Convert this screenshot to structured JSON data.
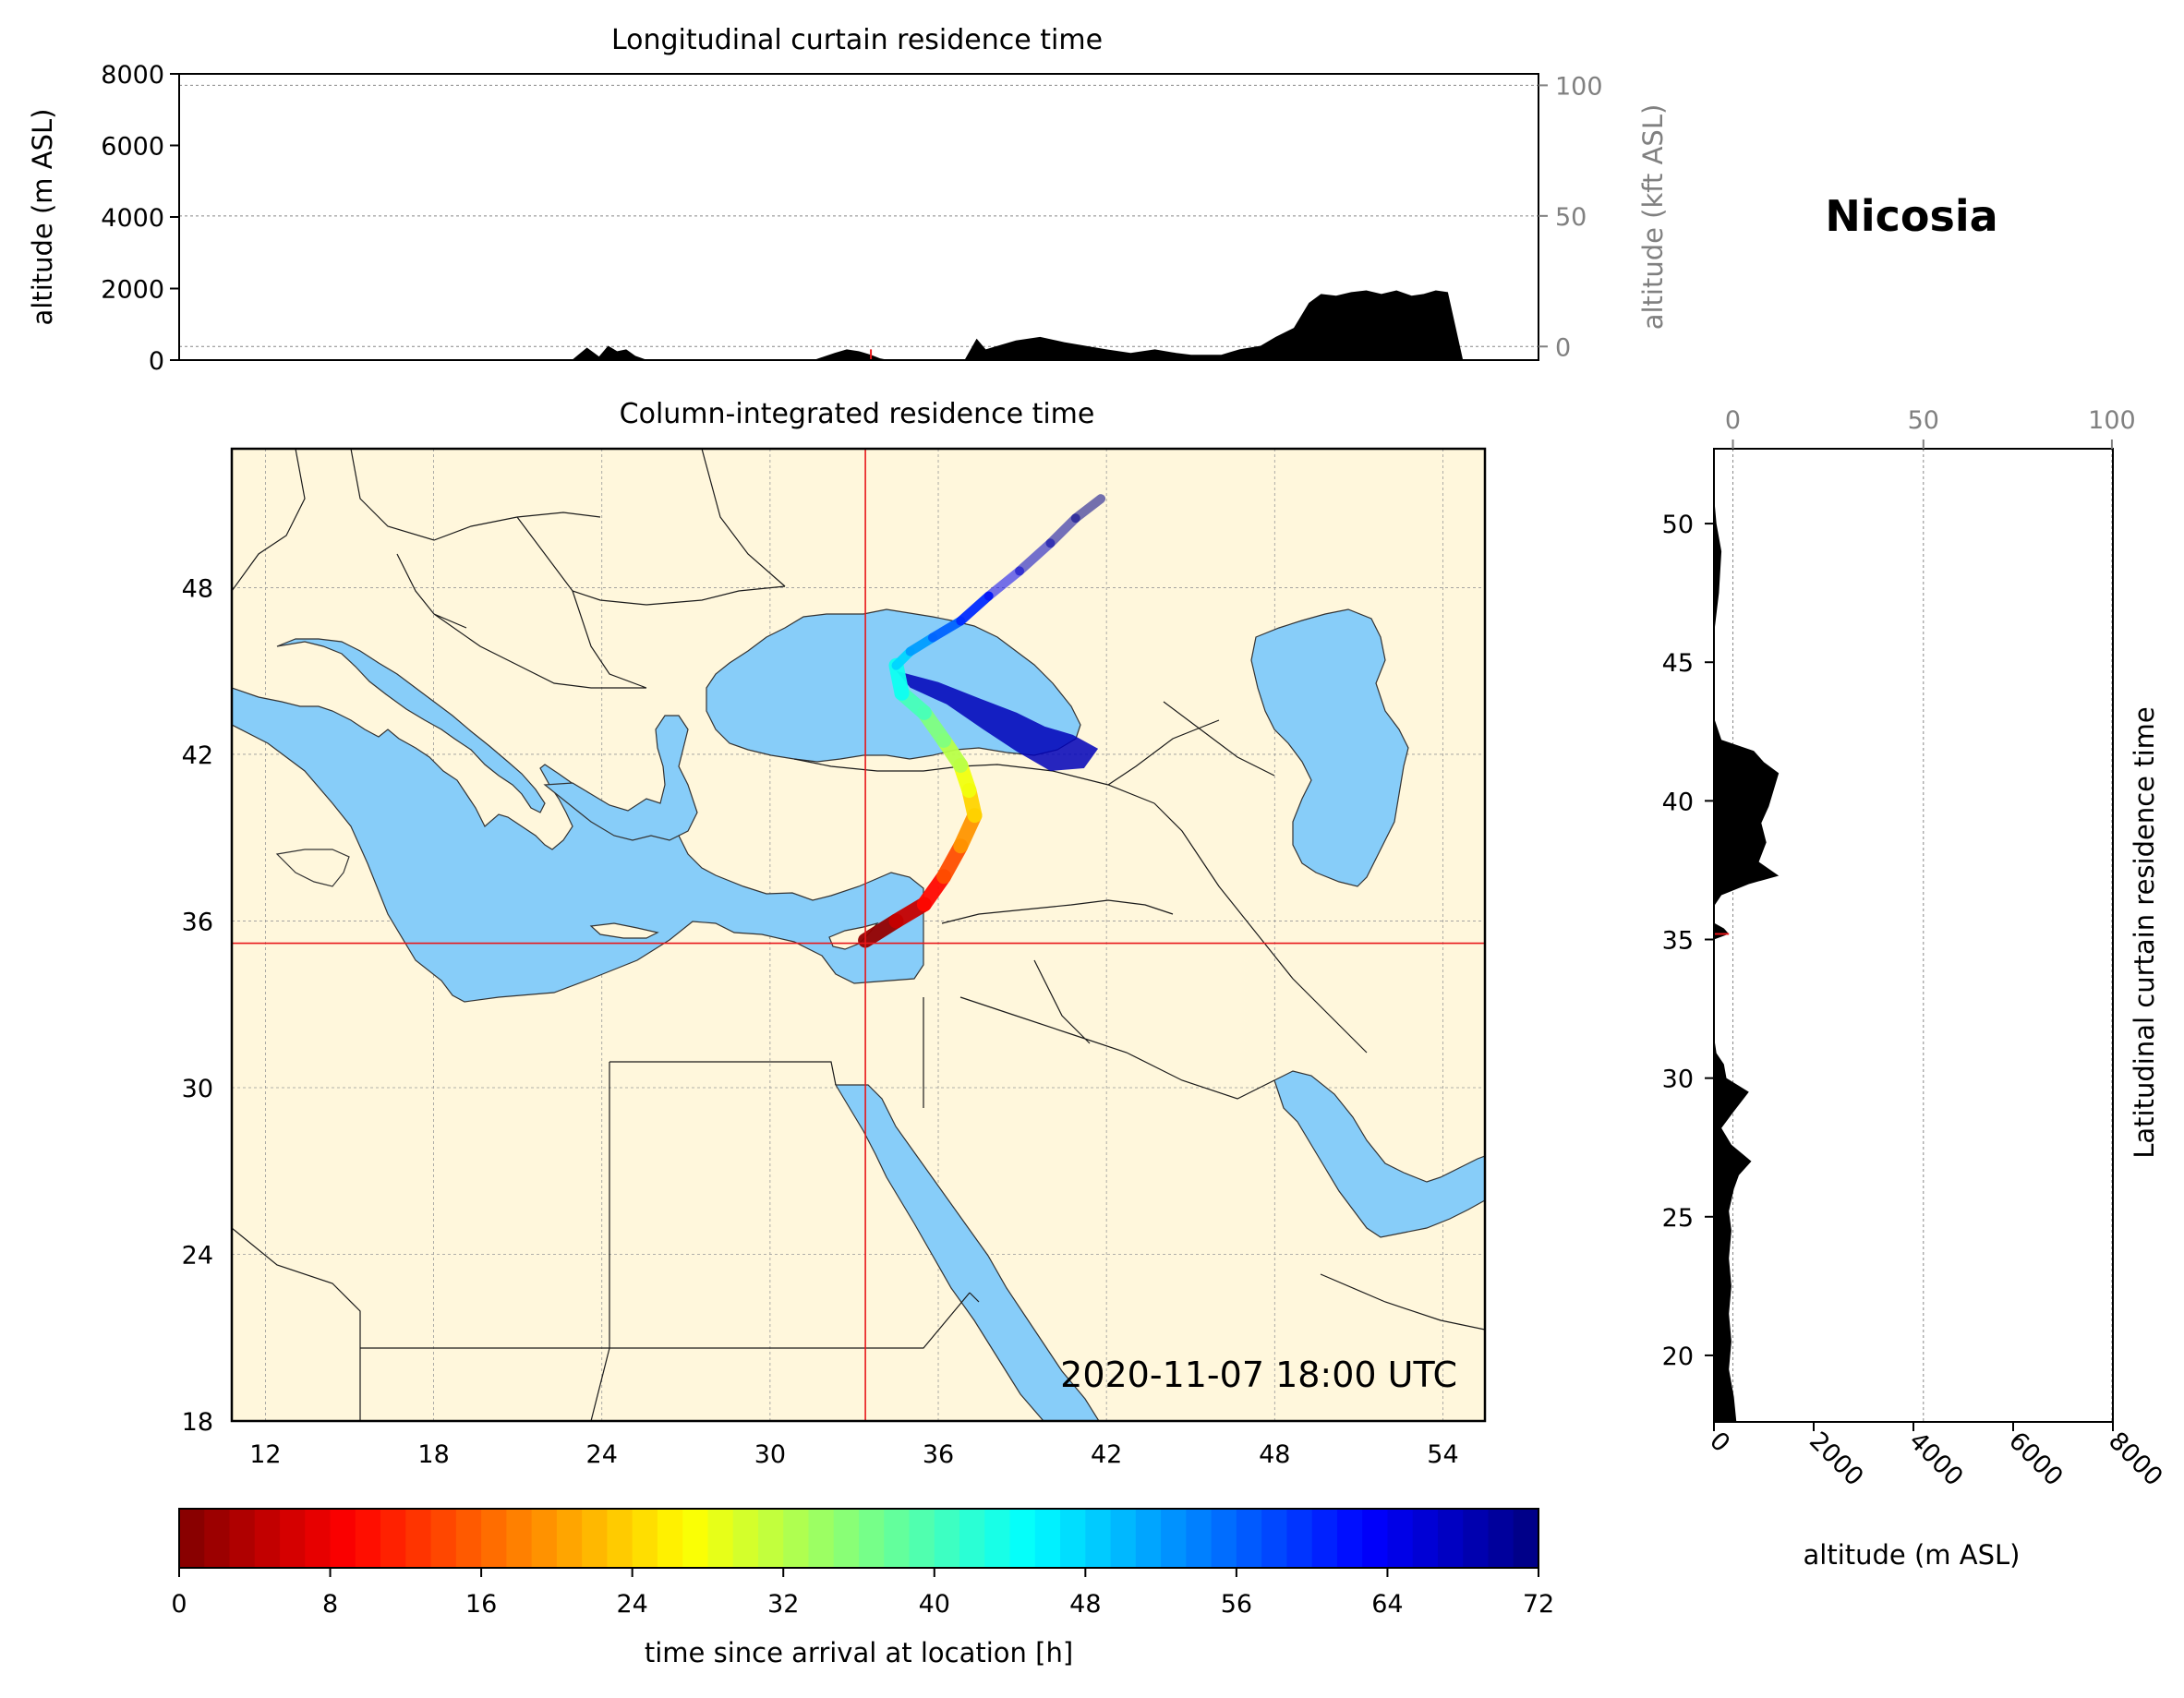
{
  "station": "Nicosia",
  "colors": {
    "land": "#fff7dc",
    "sea": "#87cdf9",
    "border": "#1a1a1a",
    "marker": "#e8171a",
    "terrain": "#000000",
    "secondary_axis": "#808080"
  },
  "colormap": "jet_r",
  "chart_data": [
    {
      "type": "area",
      "panel": "longitudinal-curtain",
      "title": "Longitudinal curtain residence time",
      "ylabel": "altitude (m ASL)",
      "ylabel_right": "altitude (kft ASL)",
      "ylim": [
        0,
        8000
      ],
      "yticks": [
        "0",
        "2000",
        "4000",
        "6000",
        "8000"
      ],
      "yticks_right": [
        "0",
        "50",
        "100"
      ],
      "xlim": [
        10.5,
        55.5
      ],
      "terrain_profile": {
        "x": [
          10.5,
          23.5,
          24.0,
          24.4,
          24.7,
          25.0,
          25.3,
          25.6,
          26.0,
          26.6,
          27.2,
          29.0,
          31.5,
          32.2,
          32.6,
          33.0,
          33.4,
          33.7,
          34.0,
          34.3,
          36.5,
          36.9,
          37.2,
          37.6,
          38.2,
          39.0,
          39.8,
          40.5,
          41.2,
          42.0,
          42.8,
          43.5,
          44.0,
          45.0,
          45.6,
          46.3,
          46.8,
          47.4,
          47.9,
          48.3,
          48.8,
          49.3,
          49.8,
          50.3,
          50.8,
          51.3,
          51.7,
          52.1,
          52.5,
          53.0,
          54.0,
          55.5
        ],
        "y": [
          0,
          0,
          350,
          100,
          400,
          250,
          300,
          120,
          0,
          0,
          0,
          0,
          0,
          200,
          300,
          250,
          150,
          50,
          0,
          0,
          0,
          600,
          300,
          400,
          550,
          650,
          500,
          400,
          300,
          200,
          300,
          200,
          150,
          150,
          300,
          400,
          650,
          900,
          1600,
          1850,
          1800,
          1900,
          1950,
          1850,
          1950,
          1800,
          1850,
          1950,
          1900,
          0,
          0,
          0
        ]
      },
      "red_marker_lon": 33.4
    },
    {
      "type": "heatmap",
      "panel": "column-integrated-map",
      "title": "Column-integrated residence time",
      "xlim": [
        10.8,
        55.5
      ],
      "ylim": [
        18,
        53
      ],
      "xticks": [
        12,
        18,
        24,
        30,
        36,
        42,
        48,
        54
      ],
      "yticks": [
        18,
        24,
        30,
        36,
        42,
        48
      ],
      "grid": true,
      "release_location": {
        "lon": 33.4,
        "lat": 35.2
      },
      "timestamp": "2020-11-07 18:00 UTC",
      "trajectory": {
        "lon": [
          33.4,
          34.5,
          35.5,
          36.2,
          36.8,
          37.3,
          37.1,
          36.8,
          36.2,
          35.5,
          34.7,
          34.5,
          35.0,
          35.8,
          36.8,
          37.8,
          38.9,
          40.0,
          40.9,
          41.8
        ],
        "lat": [
          35.3,
          36.0,
          36.6,
          37.6,
          38.7,
          39.8,
          40.7,
          41.6,
          42.5,
          43.5,
          44.2,
          45.2,
          45.7,
          46.2,
          46.8,
          47.7,
          48.6,
          49.6,
          50.5,
          51.2
        ],
        "hours": [
          0,
          3,
          7,
          12,
          17,
          22,
          26,
          30,
          34,
          38,
          42,
          46,
          50,
          54,
          58,
          62,
          66,
          69,
          71,
          72
        ]
      },
      "caucasus_plume": {
        "lon": [
          34.5,
          36.0,
          37.5,
          38.8,
          39.8,
          40.8,
          41.7,
          41.2,
          40.0,
          38.8,
          37.6,
          36.3,
          35.0
        ],
        "lat": [
          45.0,
          44.6,
          44.0,
          43.5,
          43.0,
          42.7,
          42.2,
          41.5,
          41.4,
          42.1,
          42.9,
          43.8,
          44.4
        ],
        "hours": 68
      }
    },
    {
      "type": "area",
      "panel": "latitudinal-curtain",
      "ylabel": "Latitudinal curtain residence time",
      "xlabel": "altitude (m ASL)",
      "xlim": [
        0,
        8000
      ],
      "xticks": [
        "0",
        "2000",
        "4000",
        "6000",
        "8000"
      ],
      "xticks_top": [
        "0",
        "50",
        "100"
      ],
      "ylim": [
        17.6,
        52.7
      ],
      "yticks": [
        "20",
        "25",
        "30",
        "35",
        "40",
        "45",
        "50"
      ],
      "terrain_profile": {
        "lat": [
          17.6,
          18.5,
          19.5,
          20.5,
          21.5,
          22.5,
          23.5,
          24.5,
          25.2,
          26.0,
          26.5,
          27.0,
          27.6,
          28.2,
          28.8,
          29.5,
          30.0,
          30.5,
          30.9,
          31.5,
          35.0,
          35.2,
          35.4,
          35.6,
          36.2,
          36.6,
          37.0,
          37.3,
          37.8,
          38.5,
          39.2,
          39.8,
          40.4,
          41.0,
          41.4,
          41.8,
          42.2,
          43.0,
          46.0,
          47.5,
          49.0,
          50.0,
          51.0,
          52.7
        ],
        "alt": [
          450,
          400,
          300,
          350,
          300,
          350,
          300,
          350,
          300,
          400,
          500,
          750,
          350,
          150,
          400,
          700,
          250,
          200,
          50,
          0,
          0,
          300,
          200,
          0,
          0,
          150,
          700,
          1300,
          900,
          1050,
          950,
          1100,
          1200,
          1300,
          1000,
          800,
          150,
          0,
          0,
          100,
          150,
          50,
          0,
          0
        ]
      },
      "red_marker_lat": 35.2
    },
    {
      "type": "heatmap",
      "panel": "colorbar",
      "label": "time since arrival at location [h]",
      "range": [
        0,
        72
      ],
      "ticks": [
        "0",
        "8",
        "16",
        "24",
        "32",
        "40",
        "48",
        "56",
        "64",
        "72"
      ],
      "bins": 54
    }
  ]
}
